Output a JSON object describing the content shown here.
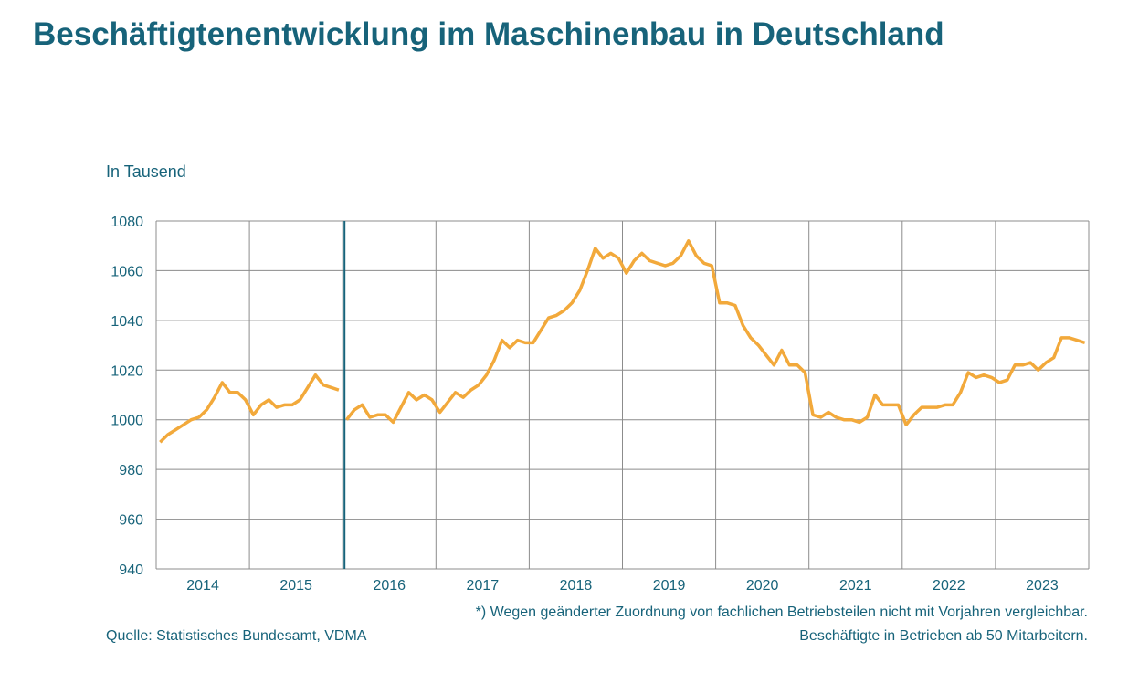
{
  "chart_data": {
    "type": "line",
    "title": "Beschäftigtenentwicklung im Maschinenbau in Deutschland",
    "ylabel": "In Tausend",
    "ylim": [
      940,
      1080
    ],
    "yticks": [
      "940",
      "960",
      "980",
      "1000",
      "1020",
      "1040",
      "1060",
      "1080"
    ],
    "xticks": [
      "2014",
      "2015",
      "2016",
      "2017",
      "2018",
      "2019",
      "2020",
      "2021",
      "2022",
      "2023"
    ],
    "grid": true,
    "line_color": "#f2a93b",
    "break_line_color": "#17637a",
    "frequency": "monthly",
    "series": [
      {
        "period": "2014-2015",
        "values": [
          991,
          994,
          996,
          998,
          1000,
          1001,
          1004,
          1009,
          1015,
          1011,
          1011,
          1008,
          1002,
          1006,
          1008,
          1005,
          1006,
          1006,
          1008,
          1013,
          1018,
          1014,
          1013,
          1012
        ]
      },
      {
        "period": "2016-2023",
        "values": [
          1000,
          1004,
          1006,
          1001,
          1002,
          1002,
          999,
          1005,
          1011,
          1008,
          1010,
          1008,
          1003,
          1007,
          1011,
          1009,
          1012,
          1014,
          1018,
          1024,
          1032,
          1029,
          1032,
          1031,
          1031,
          1036,
          1041,
          1042,
          1044,
          1047,
          1052,
          1060,
          1069,
          1065,
          1067,
          1065,
          1059,
          1064,
          1067,
          1064,
          1063,
          1062,
          1063,
          1066,
          1072,
          1066,
          1063,
          1062,
          1047,
          1047,
          1046,
          1038,
          1033,
          1030,
          1026,
          1022,
          1028,
          1022,
          1022,
          1019,
          1002,
          1001,
          1003,
          1001,
          1000,
          1000,
          999,
          1001,
          1010,
          1006,
          1006,
          1006,
          998,
          1002,
          1005,
          1005,
          1005,
          1006,
          1006,
          1011,
          1019,
          1017,
          1018,
          1017,
          1015,
          1016,
          1022,
          1022,
          1023,
          1020,
          1023,
          1025,
          1033,
          1033,
          1032,
          1031
        ]
      }
    ]
  },
  "footnote": "*) Wegen geänderter Zuordnung von fachlichen Betriebsteilen nicht mit Vorjahren vergleichbar.",
  "source": "Quelle: Statistisches Bundesamt, VDMA",
  "note": "Beschäftigte in Betrieben ab 50 Mitarbeitern."
}
